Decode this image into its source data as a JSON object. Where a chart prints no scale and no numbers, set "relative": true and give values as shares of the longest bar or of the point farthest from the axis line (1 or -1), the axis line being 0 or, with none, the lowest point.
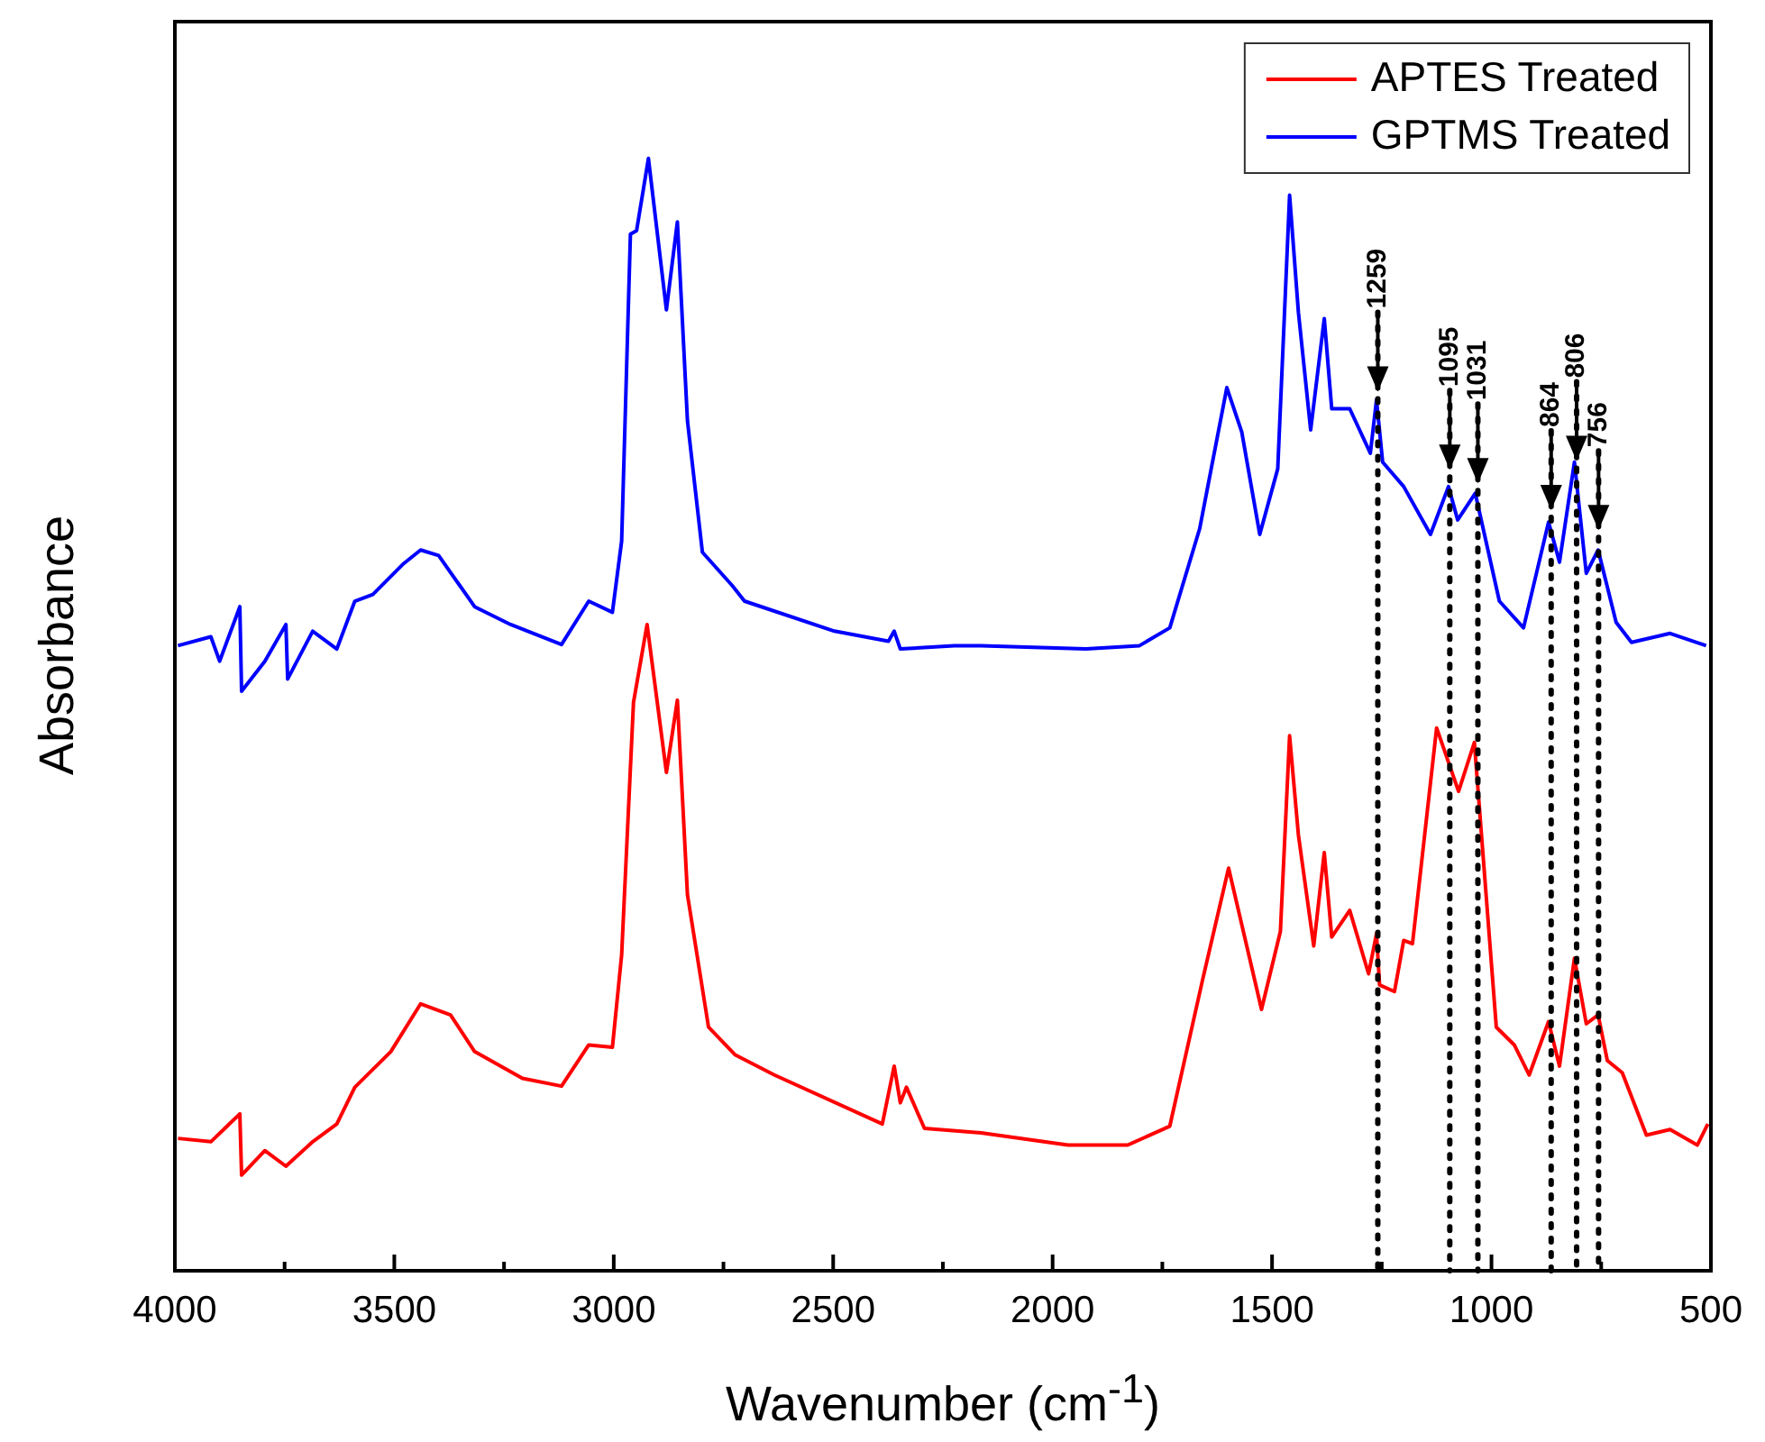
{
  "chart_data": {
    "type": "line",
    "xlabel": "Wavenumber (cm$^{-1}$)",
    "ylabel": "Absorbance",
    "relative": true,
    "legend": "top right",
    "marker": "none",
    "line_style": "solid",
    "grid": false,
    "xlim": [
      4000,
      500
    ],
    "xticks": [
      4000,
      {
        "value": 3750,
        "label": null
      },
      3500,
      {
        "value": 3250,
        "label": null
      },
      3000,
      {
        "value": 2750,
        "label": null
      },
      2500,
      {
        "value": 2250,
        "label": null
      },
      2000,
      {
        "value": 1750,
        "label": null
      },
      1500,
      {
        "value": 1250,
        "label": null
      },
      1000,
      {
        "value": 750,
        "label": null
      },
      500
    ],
    "ref_lines": [
      {
        "axis": "x",
        "value": 1259,
        "label": "1259",
        "line_style": "dotted",
        "color": "#000000"
      },
      {
        "axis": "x",
        "value": 1095,
        "label": "1095",
        "line_style": "dotted",
        "color": "#000000"
      },
      {
        "axis": "x",
        "value": 1031,
        "label": "1031",
        "line_style": "dotted",
        "color": "#000000"
      },
      {
        "axis": "x",
        "value": 864,
        "label": "864",
        "line_style": "dotted",
        "color": "#000000"
      },
      {
        "axis": "x",
        "value": 806,
        "label": "806",
        "line_style": "dotted",
        "color": "#000000"
      },
      {
        "axis": "x",
        "value": 756,
        "label": "756",
        "line_style": "dotted",
        "color": "#000000"
      }
    ],
    "series": [
      {
        "name": "APTES Treated",
        "color": "#ff0000",
        "x": [
          3993,
          3918,
          3852,
          3848,
          3795,
          3747,
          3686,
          3631,
          3590,
          3508,
          3440,
          3372,
          3317,
          3208,
          3119,
          3057,
          3003,
          2982,
          2955,
          2924,
          2880,
          2855,
          2832,
          2784,
          2723,
          2634,
          2388,
          2361,
          2347,
          2333,
          2292,
          2163,
          1965,
          1829,
          1733,
          1658,
          1599,
          1524,
          1481,
          1460,
          1440,
          1405,
          1381,
          1364,
          1323,
          1280,
          1262,
          1255,
          1221,
          1200,
          1180,
          1125,
          1075,
          1039,
          989,
          948,
          914,
          870,
          845,
          811,
          784,
          757,
          736,
          702,
          647,
          593,
          531,
          507
        ],
        "values": [
          0.119,
          0.116,
          0.141,
          0.086,
          0.108,
          0.094,
          0.116,
          0.132,
          0.165,
          0.197,
          0.24,
          0.23,
          0.197,
          0.173,
          0.166,
          0.203,
          0.201,
          0.284,
          0.511,
          0.581,
          0.448,
          0.513,
          0.338,
          0.219,
          0.194,
          0.176,
          0.132,
          0.184,
          0.151,
          0.165,
          0.128,
          0.124,
          0.113,
          0.113,
          0.13,
          0.262,
          0.362,
          0.235,
          0.305,
          0.481,
          0.392,
          0.292,
          0.376,
          0.3,
          0.324,
          0.267,
          0.303,
          0.257,
          0.251,
          0.297,
          0.294,
          0.488,
          0.431,
          0.475,
          0.219,
          0.203,
          0.176,
          0.224,
          0.184,
          0.281,
          0.222,
          0.23,
          0.189,
          0.178,
          0.122,
          0.127,
          0.113,
          0.132
        ]
      },
      {
        "name": "GPTMS Treated",
        "color": "#0000ff",
        "x": [
          3993,
          3918,
          3898,
          3852,
          3848,
          3795,
          3747,
          3743,
          3686,
          3631,
          3590,
          3549,
          3481,
          3440,
          3399,
          3317,
          3235,
          3119,
          3057,
          3003,
          2982,
          2962,
          2948,
          2921,
          2880,
          2855,
          2832,
          2798,
          2730,
          2702,
          2497,
          2374,
          2361,
          2347,
          2224,
          2163,
          1924,
          1802,
          1733,
          1665,
          1603,
          1569,
          1528,
          1487,
          1460,
          1440,
          1412,
          1381,
          1364,
          1323,
          1276,
          1262,
          1248,
          1200,
          1139,
          1098,
          1077,
          1037,
          982,
          927,
          870,
          845,
          811,
          784,
          757,
          716,
          681,
          593,
          511
        ],
        "values": [
          0.562,
          0.57,
          0.548,
          0.597,
          0.521,
          0.548,
          0.581,
          0.532,
          0.575,
          0.559,
          0.602,
          0.608,
          0.635,
          0.648,
          0.643,
          0.597,
          0.581,
          0.563,
          0.602,
          0.592,
          0.656,
          0.932,
          0.935,
          1.0,
          0.864,
          0.943,
          0.764,
          0.646,
          0.616,
          0.602,
          0.575,
          0.566,
          0.575,
          0.559,
          0.562,
          0.562,
          0.559,
          0.562,
          0.578,
          0.667,
          0.794,
          0.754,
          0.662,
          0.721,
          0.967,
          0.862,
          0.756,
          0.856,
          0.775,
          0.775,
          0.735,
          0.783,
          0.727,
          0.705,
          0.662,
          0.705,
          0.675,
          0.699,
          0.602,
          0.578,
          0.673,
          0.637,
          0.727,
          0.627,
          0.648,
          0.583,
          0.565,
          0.573,
          0.562
        ]
      }
    ]
  }
}
